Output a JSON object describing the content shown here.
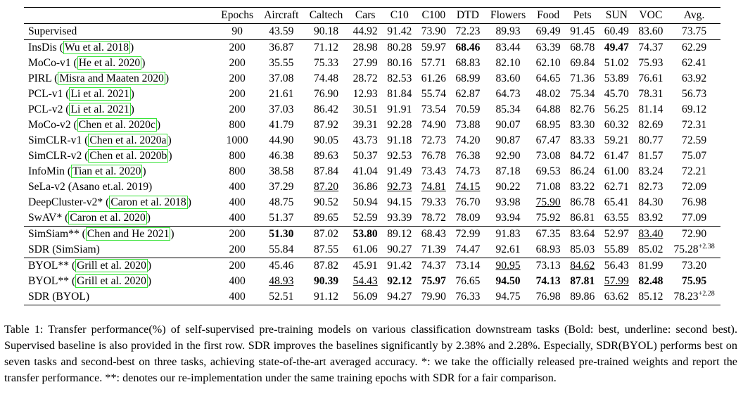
{
  "table": {
    "headers": [
      "",
      "Epochs",
      "Aircraft",
      "Caltech",
      "Cars",
      "C10",
      "C100",
      "DTD",
      "Flowers",
      "Food",
      "Pets",
      "SUN",
      "VOC",
      "Avg."
    ],
    "groups": [
      {
        "rows": [
          {
            "method": "Supervised",
            "cite": "",
            "suffix": "",
            "epochs": "90",
            "values": [
              "43.59",
              "90.18",
              "44.92",
              "91.42",
              "73.90",
              "72.23",
              "89.93",
              "69.49",
              "91.45",
              "60.49",
              "83.60",
              "73.75"
            ],
            "sup": ""
          }
        ]
      },
      {
        "rows": [
          {
            "method": "InsDis (",
            "cite": "Wu et al. 2018",
            "suffix": ")",
            "epochs": "200",
            "values": [
              "36.87",
              "71.12",
              "28.98",
              "80.28",
              "59.97",
              "68.46",
              "83.44",
              "63.39",
              "68.78",
              "49.47",
              "74.37",
              "62.29"
            ],
            "sup": ""
          },
          {
            "method": "MoCo-v1 (",
            "cite": "He et al. 2020",
            "suffix": ")",
            "epochs": "200",
            "values": [
              "35.55",
              "75.33",
              "27.99",
              "80.16",
              "57.71",
              "68.83",
              "82.10",
              "62.10",
              "69.84",
              "51.02",
              "75.93",
              "62.41"
            ],
            "sup": ""
          },
          {
            "method": "PIRL (",
            "cite": "Misra and Maaten 2020",
            "suffix": ")",
            "epochs": "200",
            "values": [
              "37.08",
              "74.48",
              "28.72",
              "82.53",
              "61.26",
              "68.99",
              "83.60",
              "64.65",
              "71.36",
              "53.89",
              "76.61",
              "63.92"
            ],
            "sup": ""
          },
          {
            "method": "PCL-v1 (",
            "cite": "Li et al. 2021",
            "suffix": ")",
            "epochs": "200",
            "values": [
              "21.61",
              "76.90",
              "12.93",
              "81.84",
              "55.74",
              "62.87",
              "64.73",
              "48.02",
              "75.34",
              "45.70",
              "78.31",
              "56.73"
            ],
            "sup": ""
          },
          {
            "method": "PCL-v2 (",
            "cite": "Li et al. 2021",
            "suffix": ")",
            "epochs": "200",
            "values": [
              "37.03",
              "86.42",
              "30.51",
              "91.91",
              "73.54",
              "70.59",
              "85.34",
              "64.88",
              "82.76",
              "56.25",
              "81.14",
              "69.12"
            ],
            "sup": ""
          },
          {
            "method": "MoCo-v2 (",
            "cite": "Chen et al. 2020c",
            "suffix": ")",
            "epochs": "800",
            "values": [
              "41.79",
              "87.92",
              "39.31",
              "92.28",
              "74.90",
              "73.88",
              "90.07",
              "68.95",
              "83.30",
              "60.32",
              "82.69",
              "72.31"
            ],
            "sup": ""
          },
          {
            "method": "SimCLR-v1 (",
            "cite": "Chen et al. 2020a",
            "suffix": ")",
            "epochs": "1000",
            "values": [
              "44.90",
              "90.05",
              "43.73",
              "91.18",
              "72.73",
              "74.20",
              "90.87",
              "67.47",
              "83.33",
              "59.21",
              "80.77",
              "72.59"
            ],
            "sup": ""
          },
          {
            "method": "SimCLR-v2 (",
            "cite": "Chen et al. 2020b",
            "suffix": ")",
            "epochs": "800",
            "values": [
              "46.38",
              "89.63",
              "50.37",
              "92.53",
              "76.78",
              "76.38",
              "92.90",
              "73.08",
              "84.72",
              "61.47",
              "81.57",
              "75.07"
            ],
            "sup": ""
          },
          {
            "method": "InfoMin (",
            "cite": "Tian et al. 2020",
            "suffix": ")",
            "epochs": "800",
            "values": [
              "38.58",
              "87.84",
              "41.04",
              "91.49",
              "73.43",
              "74.73",
              "87.18",
              "69.53",
              "86.24",
              "61.00",
              "83.24",
              "72.21"
            ],
            "sup": ""
          },
          {
            "method": "SeLa-v2 (Asano et.al. 2019)",
            "cite": "",
            "suffix": "",
            "epochs": "400",
            "values": [
              "37.29",
              "87.20",
              "36.86",
              "92.73",
              "74.81",
              "74.15",
              "90.22",
              "71.08",
              "83.22",
              "62.71",
              "82.73",
              "72.09"
            ],
            "sup": ""
          },
          {
            "method": "DeepCluster-v2* (",
            "cite": "Caron et al. 2018",
            "suffix": ")",
            "epochs": "400",
            "values": [
              "48.75",
              "90.52",
              "50.94",
              "94.15",
              "79.33",
              "76.70",
              "93.98",
              "75.90",
              "86.78",
              "65.41",
              "84.30",
              "76.98"
            ],
            "sup": ""
          },
          {
            "method": "SwAV* (",
            "cite": "Caron et al. 2020",
            "suffix": ")",
            "epochs": "400",
            "values": [
              "51.37",
              "89.65",
              "52.59",
              "93.39",
              "78.72",
              "78.09",
              "93.94",
              "75.92",
              "86.81",
              "63.55",
              "83.92",
              "77.09"
            ],
            "sup": ""
          }
        ]
      },
      {
        "rows": [
          {
            "method": "SimSiam** (",
            "cite": "Chen and He 2021",
            "suffix": ")",
            "epochs": "200",
            "values": [
              "51.30",
              "87.02",
              "53.80",
              "89.12",
              "68.43",
              "72.99",
              "91.83",
              "67.35",
              "83.64",
              "52.97",
              "83.40",
              "72.90"
            ],
            "sup": ""
          },
          {
            "method": "SDR (SimSiam)",
            "cite": "",
            "suffix": "",
            "epochs": "200",
            "values": [
              "55.84",
              "87.55",
              "61.06",
              "90.27",
              "71.39",
              "74.47",
              "92.61",
              "68.93",
              "85.03",
              "55.89",
              "85.02",
              "75.28"
            ],
            "sup": "+2.38"
          }
        ]
      },
      {
        "rows": [
          {
            "method": "BYOL** (",
            "cite": "Grill et al. 2020",
            "suffix": ")",
            "epochs": "200",
            "values": [
              "45.46",
              "87.82",
              "45.91",
              "91.42",
              "74.37",
              "73.14",
              "90.95",
              "73.13",
              "84.62",
              "56.43",
              "81.99",
              "73.20"
            ],
            "sup": ""
          },
          {
            "method": "BYOL** (",
            "cite": "Grill et al. 2020",
            "suffix": ")",
            "epochs": "400",
            "values": [
              "48.93",
              "90.39",
              "54.43",
              "92.12",
              "75.97",
              "76.65",
              "94.50",
              "74.13",
              "87.81",
              "57.99",
              "82.48",
              "75.95"
            ],
            "sup": ""
          },
          {
            "method": "SDR (BYOL)",
            "cite": "",
            "suffix": "",
            "epochs": "400",
            "values": [
              "52.51",
              "91.12",
              "56.09",
              "94.27",
              "79.90",
              "76.33",
              "94.75",
              "76.98",
              "89.86",
              "63.62",
              "85.12",
              "78.23"
            ],
            "sup": "+2.28"
          }
        ]
      }
    ],
    "bold": [
      "2.1.10",
      "2.1.6",
      "3.1.1",
      "3.1.3",
      "4.2.2",
      "4.2.4",
      "4.2.5",
      "4.2.7",
      "4.2.8",
      "4.2.9",
      "4.2.11",
      "4.2.12"
    ],
    "underline": [
      "2.10.2",
      "2.10.4",
      "2.10.5",
      "2.10.6",
      "2.11.8",
      "3.1.11",
      "4.1.7",
      "4.1.9",
      "4.2.1",
      "4.2.3",
      "4.2.10"
    ]
  },
  "caption": "Table 1: Transfer performance(%) of self-supervised pre-training models on various classification downstream tasks (Bold: best, underline: second best). Supervised baseline is also provided in the first row. SDR improves the baselines significantly by 2.38% and 2.28%. Especially, SDR(BYOL) performs best on seven tasks and second-best on three tasks, achieving state-of-the-art averaged accuracy. *: we take the officially released pre-trained weights and report the transfer performance. **: denotes our re-implementation under the same training epochs with SDR for a fair comparison."
}
